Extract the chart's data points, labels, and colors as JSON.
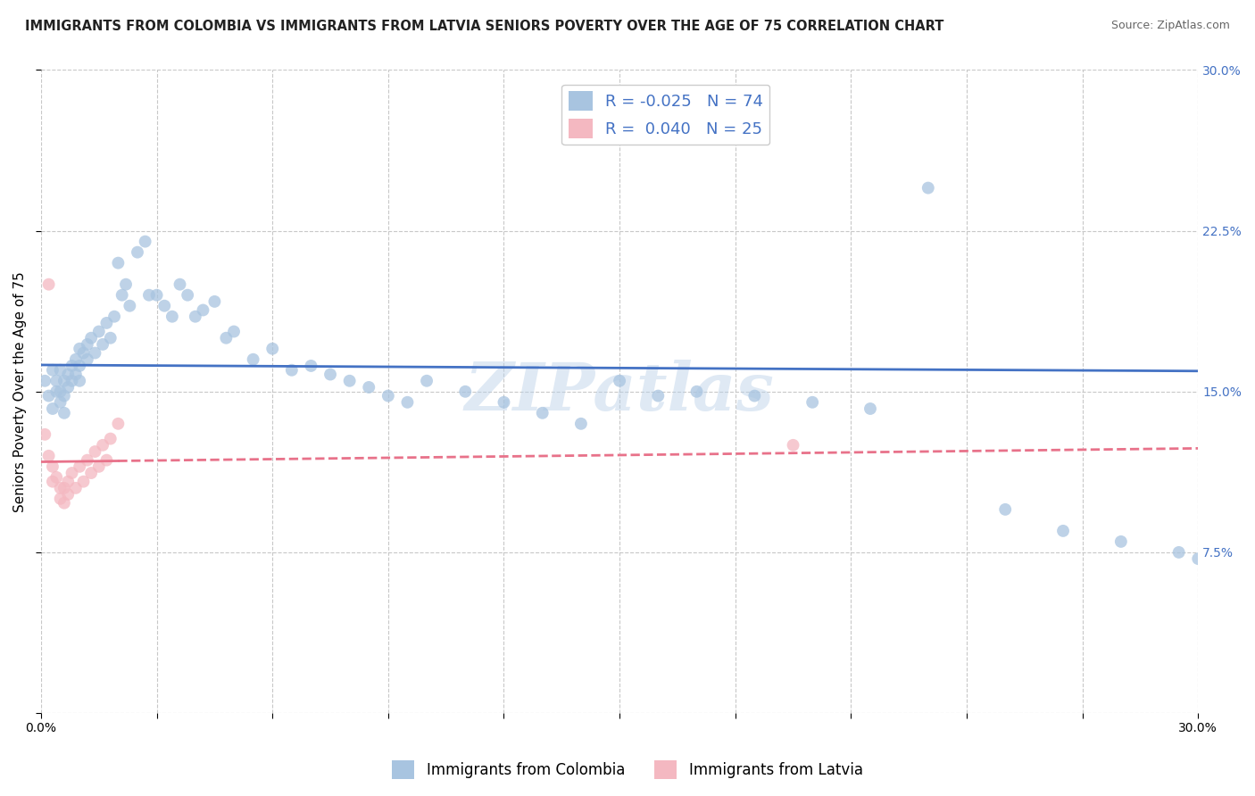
{
  "title": "IMMIGRANTS FROM COLOMBIA VS IMMIGRANTS FROM LATVIA SENIORS POVERTY OVER THE AGE OF 75 CORRELATION CHART",
  "source": "Source: ZipAtlas.com",
  "ylabel": "Seniors Poverty Over the Age of 75",
  "xlim": [
    0.0,
    0.3
  ],
  "ylim": [
    0.0,
    0.3
  ],
  "xticks": [
    0.0,
    0.03,
    0.06,
    0.09,
    0.12,
    0.15,
    0.18,
    0.21,
    0.24,
    0.27,
    0.3
  ],
  "yticks": [
    0.0,
    0.075,
    0.15,
    0.225,
    0.3
  ],
  "colombia_color": "#a8c4e0",
  "latvia_color": "#f4b8c1",
  "colombia_line_color": "#4472c4",
  "latvia_line_color": "#e8728a",
  "R_colombia": -0.025,
  "N_colombia": 74,
  "R_latvia": 0.04,
  "N_latvia": 25,
  "colombia_points_x": [
    0.001,
    0.002,
    0.003,
    0.003,
    0.004,
    0.004,
    0.005,
    0.005,
    0.005,
    0.006,
    0.006,
    0.006,
    0.007,
    0.007,
    0.008,
    0.008,
    0.009,
    0.009,
    0.01,
    0.01,
    0.01,
    0.011,
    0.012,
    0.012,
    0.013,
    0.014,
    0.015,
    0.016,
    0.017,
    0.018,
    0.019,
    0.02,
    0.021,
    0.022,
    0.023,
    0.025,
    0.027,
    0.028,
    0.03,
    0.032,
    0.034,
    0.036,
    0.038,
    0.04,
    0.042,
    0.045,
    0.048,
    0.05,
    0.055,
    0.06,
    0.065,
    0.07,
    0.075,
    0.08,
    0.085,
    0.09,
    0.095,
    0.1,
    0.11,
    0.12,
    0.13,
    0.14,
    0.15,
    0.16,
    0.17,
    0.185,
    0.2,
    0.215,
    0.23,
    0.25,
    0.265,
    0.28,
    0.295,
    0.3
  ],
  "colombia_points_y": [
    0.155,
    0.148,
    0.16,
    0.142,
    0.155,
    0.15,
    0.16,
    0.15,
    0.145,
    0.155,
    0.148,
    0.14,
    0.158,
    0.152,
    0.162,
    0.155,
    0.165,
    0.158,
    0.17,
    0.162,
    0.155,
    0.168,
    0.172,
    0.165,
    0.175,
    0.168,
    0.178,
    0.172,
    0.182,
    0.175,
    0.185,
    0.21,
    0.195,
    0.2,
    0.19,
    0.215,
    0.22,
    0.195,
    0.195,
    0.19,
    0.185,
    0.2,
    0.195,
    0.185,
    0.188,
    0.192,
    0.175,
    0.178,
    0.165,
    0.17,
    0.16,
    0.162,
    0.158,
    0.155,
    0.152,
    0.148,
    0.145,
    0.155,
    0.15,
    0.145,
    0.14,
    0.135,
    0.155,
    0.148,
    0.15,
    0.148,
    0.145,
    0.142,
    0.245,
    0.095,
    0.085,
    0.08,
    0.075,
    0.072
  ],
  "latvia_points_x": [
    0.001,
    0.002,
    0.003,
    0.003,
    0.004,
    0.005,
    0.005,
    0.006,
    0.006,
    0.007,
    0.007,
    0.008,
    0.009,
    0.01,
    0.011,
    0.012,
    0.013,
    0.014,
    0.015,
    0.016,
    0.017,
    0.018,
    0.02,
    0.195,
    0.002
  ],
  "latvia_points_y": [
    0.13,
    0.12,
    0.115,
    0.108,
    0.11,
    0.105,
    0.1,
    0.105,
    0.098,
    0.108,
    0.102,
    0.112,
    0.105,
    0.115,
    0.108,
    0.118,
    0.112,
    0.122,
    0.115,
    0.125,
    0.118,
    0.128,
    0.135,
    0.125,
    0.2
  ],
  "watermark": "ZIPatlas",
  "background_color": "#ffffff",
  "grid_color": "#c8c8c8",
  "title_fontsize": 10.5,
  "axis_fontsize": 11,
  "tick_fontsize": 10,
  "legend_fontsize": 13,
  "scatter_alpha": 0.75,
  "scatter_size": 100
}
